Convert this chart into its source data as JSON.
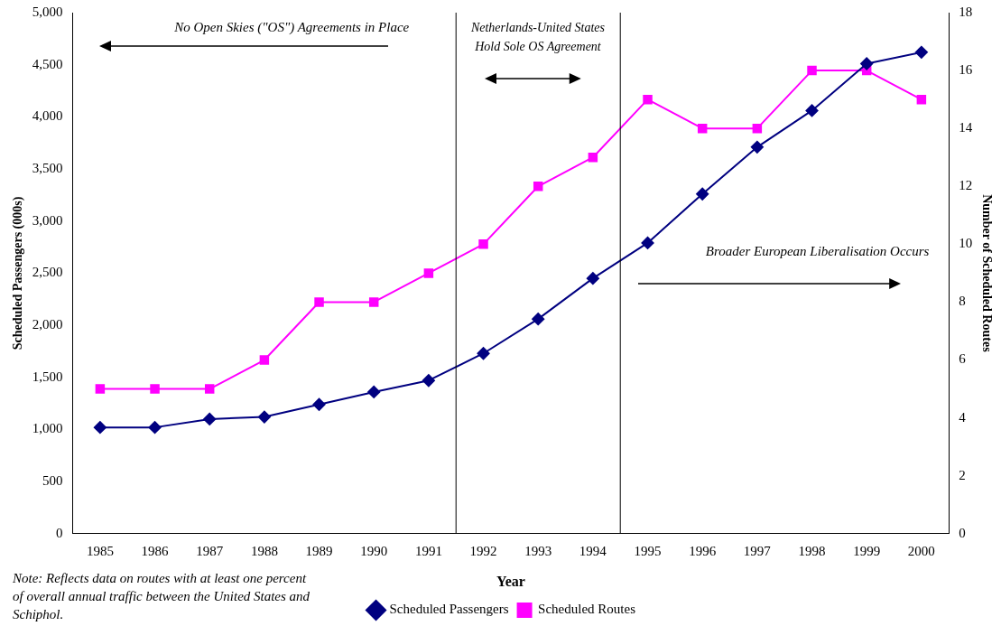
{
  "chart_data": {
    "type": "line",
    "xlabel": "Year",
    "ylabel": "Scheduled Passengers (000s)",
    "y2label": "Number of Scheduled Routes",
    "x": [
      1985,
      1986,
      1987,
      1988,
      1989,
      1990,
      1991,
      1992,
      1993,
      1994,
      1995,
      1996,
      1997,
      1998,
      1999,
      2000
    ],
    "series": [
      {
        "name": "Scheduled Passengers",
        "color": "#000080",
        "marker": "diamond",
        "values": [
          1020,
          1020,
          1100,
          1120,
          1240,
          1360,
          1470,
          1730,
          2060,
          2450,
          2790,
          3260,
          3710,
          4060,
          4510,
          4620
        ]
      },
      {
        "name": "Scheduled Routes",
        "color": "#ff00ff",
        "marker": "square",
        "axis": "y2",
        "values": [
          5,
          5,
          5,
          6,
          8,
          8,
          9,
          10,
          12,
          13,
          15,
          14,
          14,
          16,
          16,
          15
        ]
      }
    ],
    "xlim": [
      1984.5,
      2000.5
    ],
    "xticks": [
      1985,
      1986,
      1987,
      1988,
      1989,
      1990,
      1991,
      1992,
      1993,
      1994,
      1995,
      1996,
      1997,
      1998,
      1999,
      2000
    ],
    "ylim": [
      0,
      5000
    ],
    "yticks": [
      0,
      500,
      {
        "value": 1000,
        "label": "1,000"
      },
      {
        "value": 1500,
        "label": "1,500"
      },
      {
        "value": 2000,
        "label": "2,000"
      },
      {
        "value": 2500,
        "label": "2,500"
      },
      {
        "value": 3000,
        "label": "3,000"
      },
      {
        "value": 3500,
        "label": "3,500"
      },
      {
        "value": 4000,
        "label": "4,000"
      },
      {
        "value": 4500,
        "label": "4,500"
      },
      {
        "value": 5000,
        "label": "5,000"
      }
    ],
    "y2lim": [
      0,
      18
    ],
    "y2ticks": [
      0,
      2,
      4,
      6,
      8,
      10,
      12,
      14,
      16,
      18
    ],
    "ref_lines": [
      {
        "axis": "x",
        "value": 1991.5,
        "color": "#000000"
      },
      {
        "axis": "x",
        "value": 1994.5,
        "color": "#000000"
      }
    ],
    "annotations": [
      "No Open Skies (\"OS\") Agreements in Place",
      "Netherlands-United States\nHold Sole OS Agreement",
      "Broader European Liberalisation Occurs",
      "Note:  Reflects data on routes with at least one percent of overall annual traffic between the United States and Schiphol."
    ],
    "grid": false,
    "legend": "bottom"
  }
}
